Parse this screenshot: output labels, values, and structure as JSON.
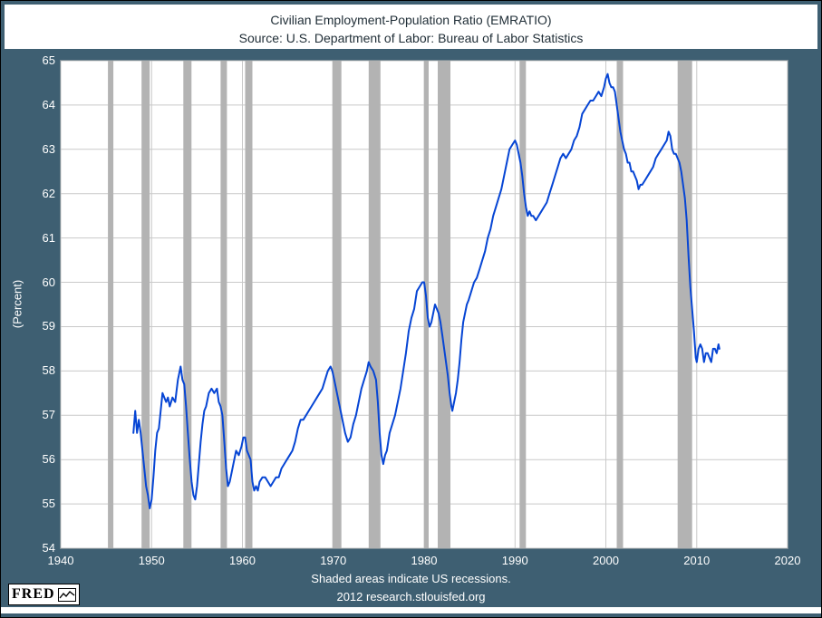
{
  "title": "Civilian Employment-Population Ratio (EMRATIO)",
  "subtitle": "Source: U.S. Department of Labor: Bureau of Labor Statistics",
  "y_axis_label": "(Percent)",
  "footnote_line1": "Shaded areas indicate US recessions.",
  "footnote_line2": "2012 research.stlouisfed.org",
  "logo_text": "FRED",
  "colors": {
    "background": "#3e5f72",
    "plot_background": "#ffffff",
    "grid": "#c9c9c9",
    "recession": "#b3b3b3",
    "line": "#0645d4",
    "tick_text": "#ffffff",
    "title_text": "#1f2d36"
  },
  "chart_data": {
    "type": "line",
    "title": "Civilian Employment-Population Ratio (EMRATIO)",
    "subtitle": "Source: U.S. Department of Labor: Bureau of Labor Statistics",
    "xlabel": "",
    "ylabel": "(Percent)",
    "xlim": [
      1940,
      2020
    ],
    "ylim": [
      54,
      65
    ],
    "x_ticks": [
      1940,
      1950,
      1960,
      1970,
      1980,
      1990,
      2000,
      2010,
      2020
    ],
    "y_ticks": [
      54,
      55,
      56,
      57,
      58,
      59,
      60,
      61,
      62,
      63,
      64,
      65
    ],
    "grid": true,
    "legend": "none",
    "recessions": [
      [
        1945.2,
        1945.8
      ],
      [
        1948.9,
        1949.8
      ],
      [
        1953.5,
        1954.4
      ],
      [
        1957.6,
        1958.3
      ],
      [
        1960.3,
        1961.1
      ],
      [
        1969.9,
        1970.9
      ],
      [
        1973.9,
        1975.2
      ],
      [
        1980.0,
        1980.5
      ],
      [
        1981.5,
        1982.9
      ],
      [
        1990.5,
        1991.2
      ],
      [
        2001.2,
        2001.9
      ],
      [
        2007.9,
        2009.5
      ]
    ],
    "series": [
      {
        "name": "EMRATIO",
        "color": "#0645d4",
        "points": [
          [
            1948.0,
            56.6
          ],
          [
            1948.2,
            57.1
          ],
          [
            1948.4,
            56.6
          ],
          [
            1948.6,
            56.9
          ],
          [
            1948.8,
            56.6
          ],
          [
            1949.0,
            56.2
          ],
          [
            1949.2,
            55.8
          ],
          [
            1949.4,
            55.4
          ],
          [
            1949.6,
            55.2
          ],
          [
            1949.8,
            54.9
          ],
          [
            1950.0,
            55.1
          ],
          [
            1950.2,
            55.6
          ],
          [
            1950.4,
            56.2
          ],
          [
            1950.6,
            56.6
          ],
          [
            1950.8,
            56.7
          ],
          [
            1951.0,
            57.1
          ],
          [
            1951.2,
            57.5
          ],
          [
            1951.4,
            57.4
          ],
          [
            1951.6,
            57.3
          ],
          [
            1951.8,
            57.4
          ],
          [
            1952.0,
            57.2
          ],
          [
            1952.3,
            57.4
          ],
          [
            1952.6,
            57.3
          ],
          [
            1952.9,
            57.8
          ],
          [
            1953.0,
            57.9
          ],
          [
            1953.2,
            58.1
          ],
          [
            1953.4,
            57.8
          ],
          [
            1953.6,
            57.7
          ],
          [
            1953.8,
            57.2
          ],
          [
            1954.0,
            56.6
          ],
          [
            1954.2,
            56.0
          ],
          [
            1954.4,
            55.5
          ],
          [
            1954.6,
            55.2
          ],
          [
            1954.8,
            55.1
          ],
          [
            1955.0,
            55.4
          ],
          [
            1955.2,
            55.9
          ],
          [
            1955.4,
            56.4
          ],
          [
            1955.6,
            56.8
          ],
          [
            1955.8,
            57.1
          ],
          [
            1956.0,
            57.2
          ],
          [
            1956.3,
            57.5
          ],
          [
            1956.6,
            57.6
          ],
          [
            1956.9,
            57.5
          ],
          [
            1957.2,
            57.6
          ],
          [
            1957.4,
            57.3
          ],
          [
            1957.6,
            57.2
          ],
          [
            1957.8,
            57.0
          ],
          [
            1958.0,
            56.4
          ],
          [
            1958.2,
            55.8
          ],
          [
            1958.4,
            55.4
          ],
          [
            1958.6,
            55.5
          ],
          [
            1958.8,
            55.7
          ],
          [
            1959.0,
            55.9
          ],
          [
            1959.3,
            56.2
          ],
          [
            1959.6,
            56.1
          ],
          [
            1959.9,
            56.3
          ],
          [
            1960.1,
            56.5
          ],
          [
            1960.3,
            56.5
          ],
          [
            1960.5,
            56.2
          ],
          [
            1960.7,
            56.1
          ],
          [
            1960.9,
            56.0
          ],
          [
            1961.1,
            55.5
          ],
          [
            1961.3,
            55.3
          ],
          [
            1961.5,
            55.4
          ],
          [
            1961.7,
            55.3
          ],
          [
            1961.9,
            55.5
          ],
          [
            1962.2,
            55.6
          ],
          [
            1962.5,
            55.6
          ],
          [
            1962.8,
            55.5
          ],
          [
            1963.1,
            55.4
          ],
          [
            1963.4,
            55.5
          ],
          [
            1963.7,
            55.6
          ],
          [
            1964.0,
            55.6
          ],
          [
            1964.3,
            55.8
          ],
          [
            1964.6,
            55.9
          ],
          [
            1964.9,
            56.0
          ],
          [
            1965.2,
            56.1
          ],
          [
            1965.5,
            56.2
          ],
          [
            1965.8,
            56.4
          ],
          [
            1966.1,
            56.7
          ],
          [
            1966.4,
            56.9
          ],
          [
            1966.7,
            56.9
          ],
          [
            1967.0,
            57.0
          ],
          [
            1967.3,
            57.1
          ],
          [
            1967.6,
            57.2
          ],
          [
            1967.9,
            57.3
          ],
          [
            1968.2,
            57.4
          ],
          [
            1968.5,
            57.5
          ],
          [
            1968.8,
            57.6
          ],
          [
            1969.1,
            57.8
          ],
          [
            1969.4,
            58.0
          ],
          [
            1969.7,
            58.1
          ],
          [
            1969.9,
            58.0
          ],
          [
            1970.1,
            57.8
          ],
          [
            1970.4,
            57.5
          ],
          [
            1970.7,
            57.2
          ],
          [
            1971.0,
            56.9
          ],
          [
            1971.3,
            56.6
          ],
          [
            1971.6,
            56.4
          ],
          [
            1971.9,
            56.5
          ],
          [
            1972.2,
            56.8
          ],
          [
            1972.5,
            57.0
          ],
          [
            1972.8,
            57.3
          ],
          [
            1973.1,
            57.6
          ],
          [
            1973.4,
            57.8
          ],
          [
            1973.7,
            58.0
          ],
          [
            1973.9,
            58.2
          ],
          [
            1974.1,
            58.1
          ],
          [
            1974.4,
            58.0
          ],
          [
            1974.7,
            57.8
          ],
          [
            1974.9,
            57.3
          ],
          [
            1975.1,
            56.6
          ],
          [
            1975.3,
            56.1
          ],
          [
            1975.5,
            55.9
          ],
          [
            1975.7,
            56.1
          ],
          [
            1975.9,
            56.2
          ],
          [
            1976.2,
            56.6
          ],
          [
            1976.5,
            56.8
          ],
          [
            1976.8,
            57.0
          ],
          [
            1977.1,
            57.3
          ],
          [
            1977.4,
            57.6
          ],
          [
            1977.7,
            58.0
          ],
          [
            1978.0,
            58.4
          ],
          [
            1978.3,
            58.9
          ],
          [
            1978.6,
            59.2
          ],
          [
            1978.9,
            59.4
          ],
          [
            1979.2,
            59.8
          ],
          [
            1979.5,
            59.9
          ],
          [
            1979.8,
            60.0
          ],
          [
            1980.0,
            60.0
          ],
          [
            1980.2,
            59.7
          ],
          [
            1980.4,
            59.2
          ],
          [
            1980.6,
            59.0
          ],
          [
            1980.8,
            59.1
          ],
          [
            1981.0,
            59.3
          ],
          [
            1981.2,
            59.5
          ],
          [
            1981.4,
            59.4
          ],
          [
            1981.6,
            59.3
          ],
          [
            1981.8,
            59.1
          ],
          [
            1982.0,
            58.8
          ],
          [
            1982.2,
            58.5
          ],
          [
            1982.4,
            58.2
          ],
          [
            1982.6,
            57.9
          ],
          [
            1982.8,
            57.5
          ],
          [
            1983.0,
            57.2
          ],
          [
            1983.1,
            57.1
          ],
          [
            1983.3,
            57.3
          ],
          [
            1983.5,
            57.5
          ],
          [
            1983.7,
            57.8
          ],
          [
            1983.9,
            58.2
          ],
          [
            1984.1,
            58.7
          ],
          [
            1984.3,
            59.1
          ],
          [
            1984.5,
            59.3
          ],
          [
            1984.7,
            59.5
          ],
          [
            1984.9,
            59.6
          ],
          [
            1985.2,
            59.8
          ],
          [
            1985.5,
            60.0
          ],
          [
            1985.8,
            60.1
          ],
          [
            1986.1,
            60.3
          ],
          [
            1986.4,
            60.5
          ],
          [
            1986.7,
            60.7
          ],
          [
            1987.0,
            61.0
          ],
          [
            1987.3,
            61.2
          ],
          [
            1987.6,
            61.5
          ],
          [
            1987.9,
            61.7
          ],
          [
            1988.2,
            61.9
          ],
          [
            1988.5,
            62.1
          ],
          [
            1988.8,
            62.4
          ],
          [
            1989.1,
            62.7
          ],
          [
            1989.4,
            63.0
          ],
          [
            1989.7,
            63.1
          ],
          [
            1990.0,
            63.2
          ],
          [
            1990.2,
            63.1
          ],
          [
            1990.4,
            62.9
          ],
          [
            1990.6,
            62.7
          ],
          [
            1990.8,
            62.4
          ],
          [
            1991.0,
            62.0
          ],
          [
            1991.2,
            61.7
          ],
          [
            1991.4,
            61.5
          ],
          [
            1991.6,
            61.6
          ],
          [
            1991.8,
            61.5
          ],
          [
            1992.0,
            61.5
          ],
          [
            1992.3,
            61.4
          ],
          [
            1992.6,
            61.5
          ],
          [
            1992.9,
            61.6
          ],
          [
            1993.2,
            61.7
          ],
          [
            1993.5,
            61.8
          ],
          [
            1993.8,
            62.0
          ],
          [
            1994.1,
            62.2
          ],
          [
            1994.4,
            62.4
          ],
          [
            1994.7,
            62.6
          ],
          [
            1995.0,
            62.8
          ],
          [
            1995.3,
            62.9
          ],
          [
            1995.6,
            62.8
          ],
          [
            1995.9,
            62.9
          ],
          [
            1996.2,
            63.0
          ],
          [
            1996.5,
            63.2
          ],
          [
            1996.8,
            63.3
          ],
          [
            1997.1,
            63.5
          ],
          [
            1997.4,
            63.8
          ],
          [
            1997.7,
            63.9
          ],
          [
            1998.0,
            64.0
          ],
          [
            1998.3,
            64.1
          ],
          [
            1998.6,
            64.1
          ],
          [
            1998.9,
            64.2
          ],
          [
            1999.2,
            64.3
          ],
          [
            1999.5,
            64.2
          ],
          [
            1999.8,
            64.4
          ],
          [
            2000.0,
            64.6
          ],
          [
            2000.2,
            64.7
          ],
          [
            2000.4,
            64.5
          ],
          [
            2000.6,
            64.4
          ],
          [
            2000.8,
            64.4
          ],
          [
            2001.0,
            64.3
          ],
          [
            2001.2,
            64.0
          ],
          [
            2001.4,
            63.7
          ],
          [
            2001.6,
            63.4
          ],
          [
            2001.8,
            63.2
          ],
          [
            2002.0,
            63.0
          ],
          [
            2002.2,
            62.9
          ],
          [
            2002.4,
            62.7
          ],
          [
            2002.6,
            62.7
          ],
          [
            2002.8,
            62.5
          ],
          [
            2003.0,
            62.5
          ],
          [
            2003.2,
            62.4
          ],
          [
            2003.4,
            62.3
          ],
          [
            2003.6,
            62.1
          ],
          [
            2003.8,
            62.2
          ],
          [
            2004.0,
            62.2
          ],
          [
            2004.3,
            62.3
          ],
          [
            2004.6,
            62.4
          ],
          [
            2004.9,
            62.5
          ],
          [
            2005.2,
            62.6
          ],
          [
            2005.5,
            62.8
          ],
          [
            2005.8,
            62.9
          ],
          [
            2006.1,
            63.0
          ],
          [
            2006.4,
            63.1
          ],
          [
            2006.7,
            63.2
          ],
          [
            2006.9,
            63.4
          ],
          [
            2007.1,
            63.3
          ],
          [
            2007.3,
            63.0
          ],
          [
            2007.5,
            62.9
          ],
          [
            2007.7,
            62.9
          ],
          [
            2007.9,
            62.8
          ],
          [
            2008.1,
            62.7
          ],
          [
            2008.3,
            62.5
          ],
          [
            2008.5,
            62.2
          ],
          [
            2008.7,
            61.9
          ],
          [
            2008.9,
            61.4
          ],
          [
            2009.1,
            60.6
          ],
          [
            2009.3,
            59.9
          ],
          [
            2009.5,
            59.4
          ],
          [
            2009.7,
            58.9
          ],
          [
            2009.9,
            58.3
          ],
          [
            2010.0,
            58.2
          ],
          [
            2010.2,
            58.5
          ],
          [
            2010.4,
            58.6
          ],
          [
            2010.6,
            58.5
          ],
          [
            2010.8,
            58.2
          ],
          [
            2011.0,
            58.4
          ],
          [
            2011.2,
            58.4
          ],
          [
            2011.4,
            58.3
          ],
          [
            2011.6,
            58.2
          ],
          [
            2011.8,
            58.5
          ],
          [
            2012.0,
            58.5
          ],
          [
            2012.2,
            58.4
          ],
          [
            2012.4,
            58.6
          ],
          [
            2012.5,
            58.5
          ]
        ]
      }
    ]
  }
}
